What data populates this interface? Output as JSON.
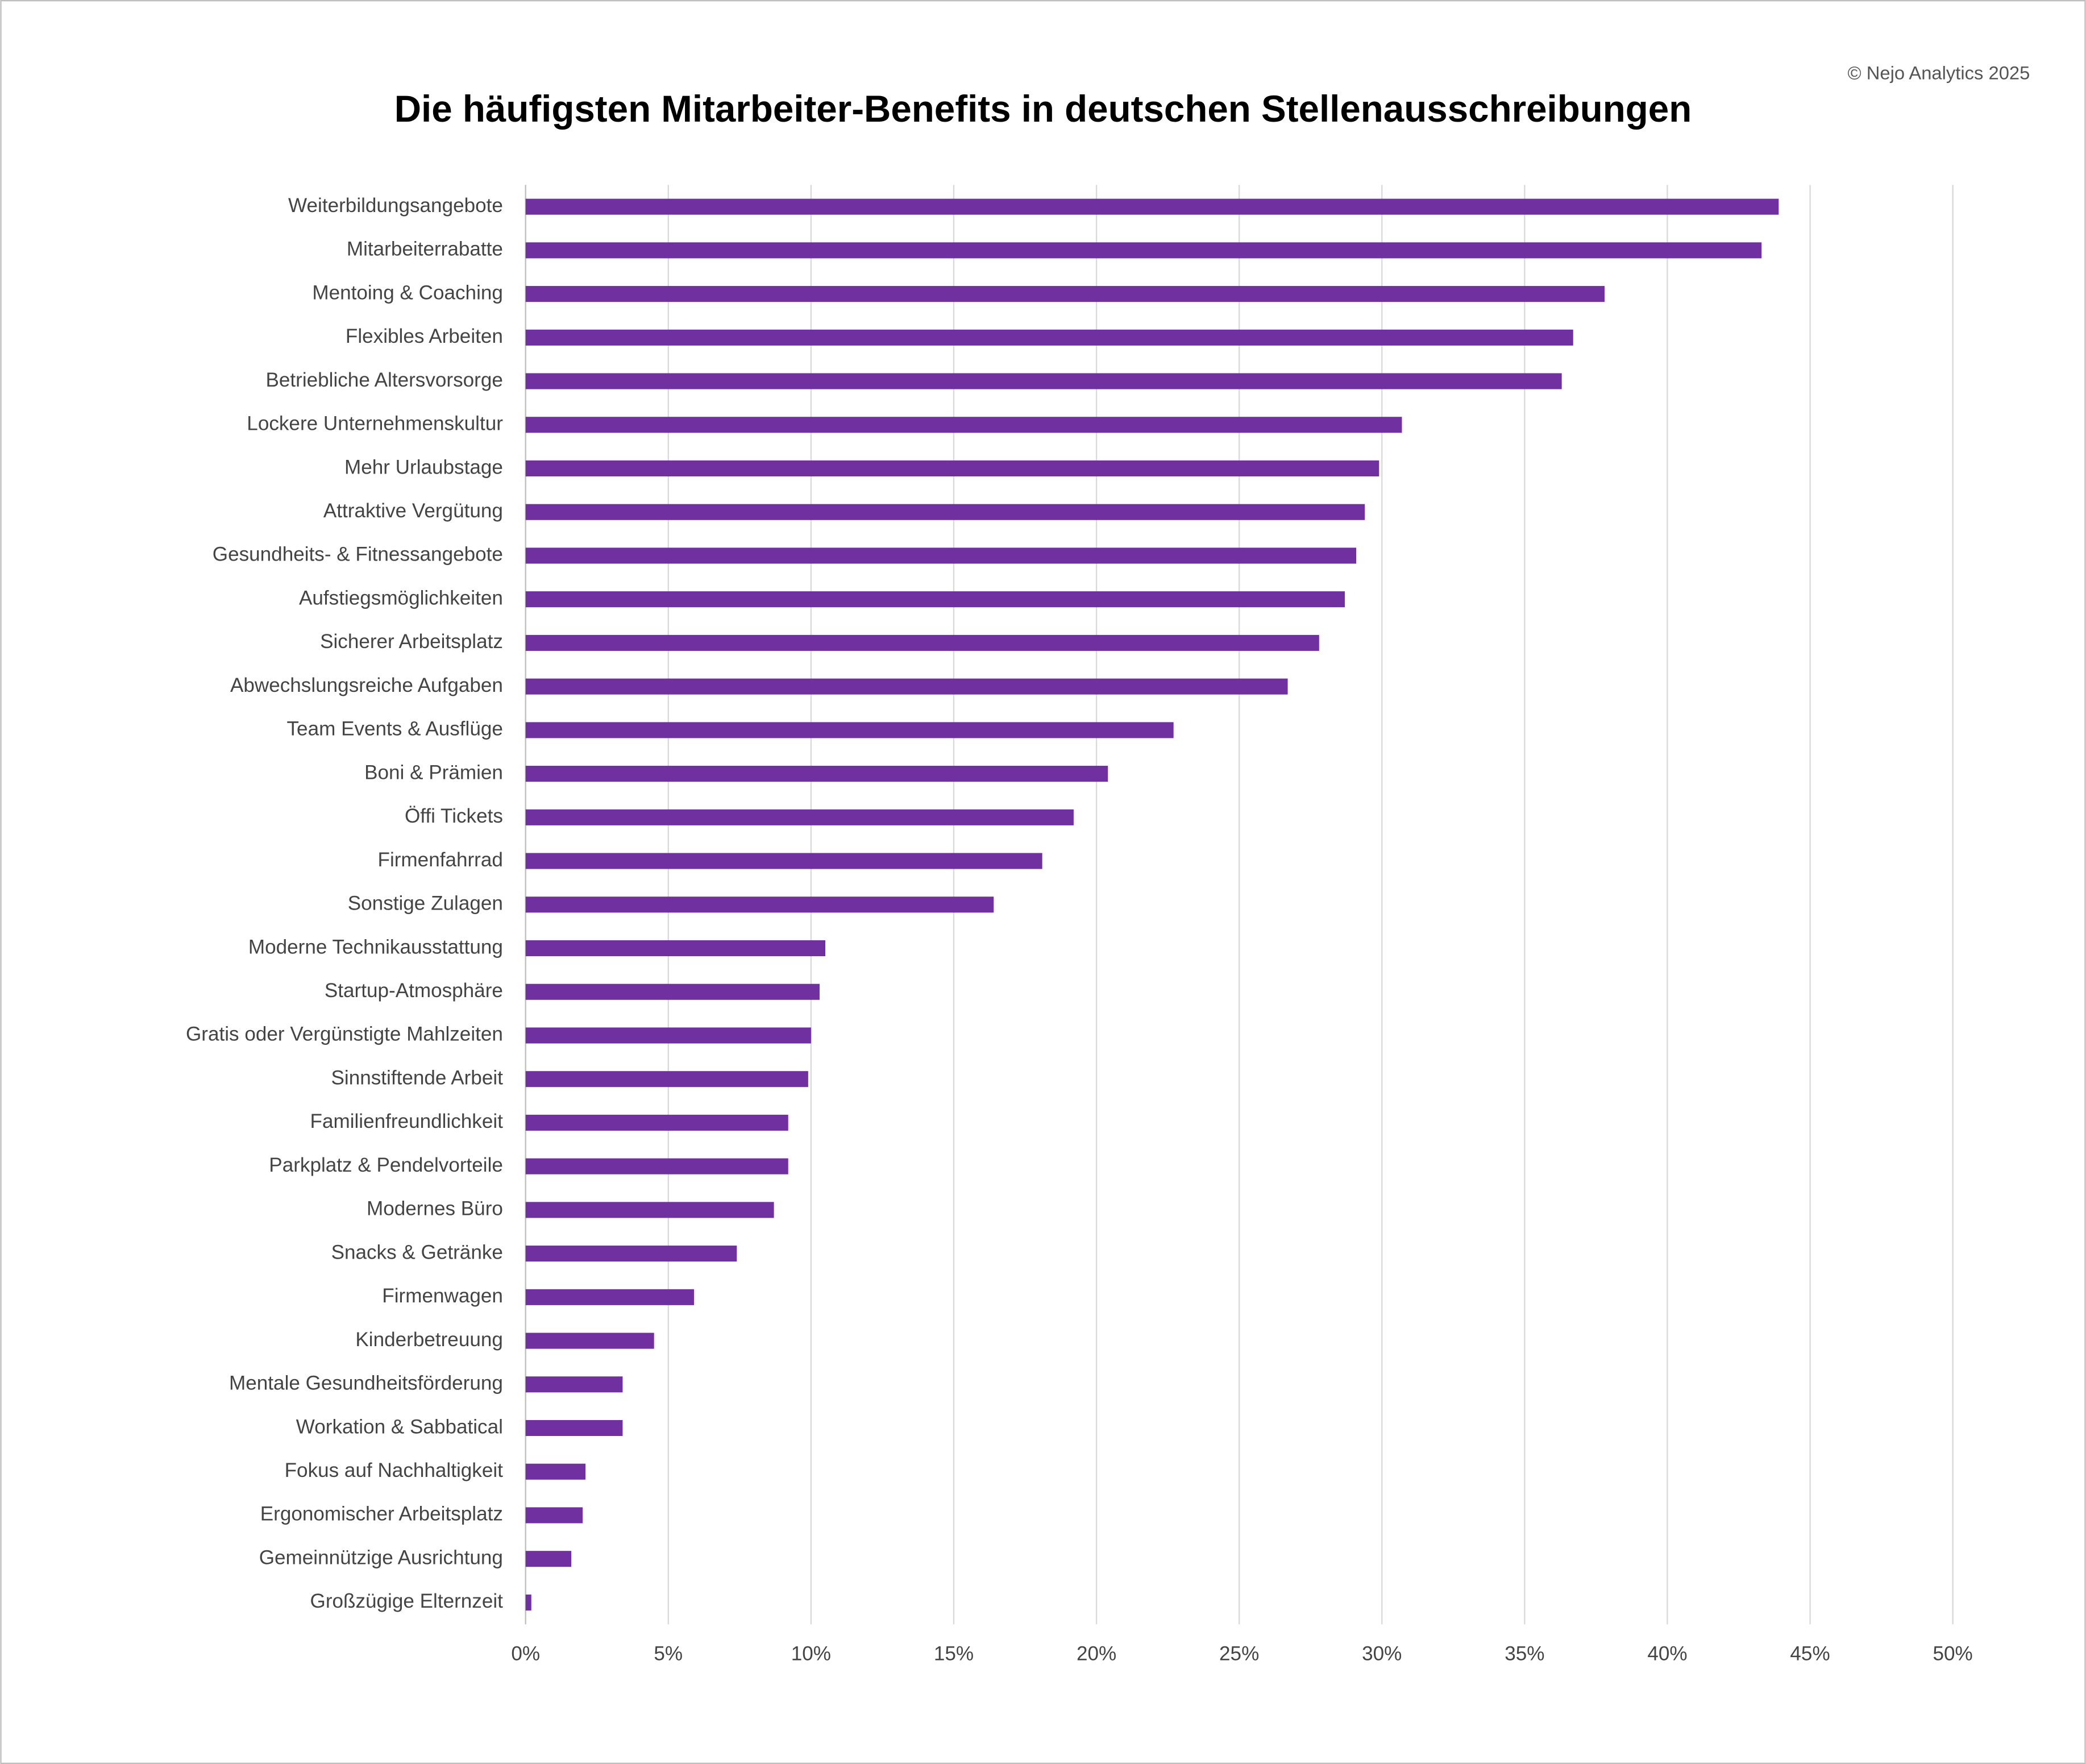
{
  "chart_data": {
    "type": "barh",
    "title": "Die häufigsten Mitarbeiter-Benefits in deutschen Stellenausschreibungen",
    "credit": "© Nejo Analytics 2025",
    "categories": [
      "Weiterbildungsangebote",
      "Mitarbeiterrabatte",
      "Mentoing & Coaching",
      "Flexibles Arbeiten",
      "Betriebliche Altersvorsorge",
      "Lockere Unternehmenskultur",
      "Mehr Urlaubstage",
      "Attraktive Vergütung",
      "Gesundheits- & Fitnessangebote",
      "Aufstiegsmöglichkeiten",
      "Sicherer Arbeitsplatz",
      "Abwechslungsreiche Aufgaben",
      "Team Events & Ausflüge",
      "Boni & Prämien",
      "Öffi Tickets",
      "Firmenfahrrad",
      "Sonstige Zulagen",
      "Moderne Technikausstattung",
      "Startup-Atmosphäre",
      "Gratis oder Vergünstigte Mahlzeiten",
      "Sinnstiftende Arbeit",
      "Familienfreundlichkeit",
      "Parkplatz & Pendelvorteile",
      "Modernes Büro",
      "Snacks & Getränke",
      "Firmenwagen",
      "Kinderbetreuung",
      "Mentale Gesundheitsförderung",
      "Workation & Sabbatical",
      "Fokus auf Nachhaltigkeit",
      "Ergonomischer Arbeitsplatz",
      "Gemeinnützige Ausrichtung",
      "Großzügige Elternzeit"
    ],
    "values": [
      43.9,
      43.3,
      37.8,
      36.7,
      36.3,
      30.7,
      29.9,
      29.4,
      29.1,
      28.7,
      27.8,
      26.7,
      22.7,
      20.4,
      19.2,
      18.1,
      16.4,
      10.5,
      10.3,
      10.0,
      9.9,
      9.2,
      9.2,
      8.7,
      7.4,
      5.9,
      4.5,
      3.4,
      3.4,
      2.1,
      2.0,
      1.6,
      0.2
    ],
    "color": "#7030a0",
    "xlim": [
      0,
      50
    ],
    "xticks": [
      {
        "value": 0,
        "label": "0%"
      },
      {
        "value": 5,
        "label": "5%"
      },
      {
        "value": 10,
        "label": "10%"
      },
      {
        "value": 15,
        "label": "15%"
      },
      {
        "value": 20,
        "label": "20%"
      },
      {
        "value": 25,
        "label": "25%"
      },
      {
        "value": 30,
        "label": "30%"
      },
      {
        "value": 35,
        "label": "35%"
      },
      {
        "value": 40,
        "label": "40%"
      },
      {
        "value": 45,
        "label": "45%"
      },
      {
        "value": 50,
        "label": "50%"
      }
    ],
    "grid": true
  }
}
